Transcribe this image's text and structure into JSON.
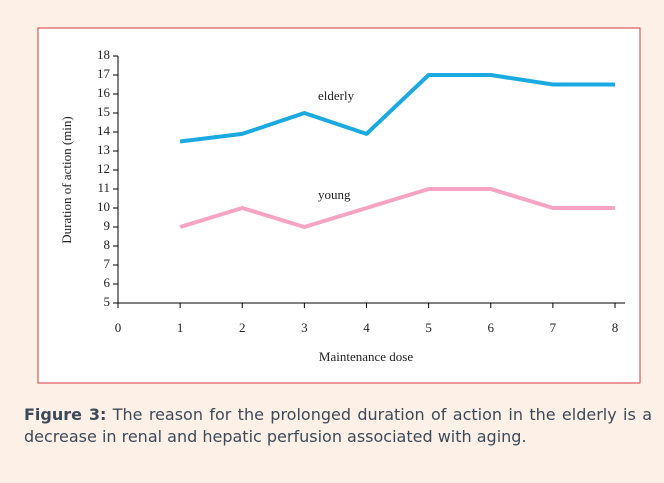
{
  "chart_data": {
    "type": "line",
    "x": [
      1,
      2,
      3,
      4,
      5,
      6,
      7,
      8
    ],
    "series": [
      {
        "name": "elderly",
        "color": "#1ba9e1",
        "values": [
          13.5,
          13.9,
          15,
          13.9,
          17,
          17,
          16.5,
          16.5
        ]
      },
      {
        "name": "young",
        "color": "#f7a3c4",
        "values": [
          9,
          10,
          9,
          10,
          11,
          11,
          10,
          10
        ]
      }
    ],
    "xlabel": "Maintenance dose",
    "ylabel": "Duration of action (min)",
    "xlim": [
      0,
      8
    ],
    "xticks": [
      0,
      1,
      2,
      3,
      4,
      5,
      6,
      7,
      8
    ],
    "ylim": [
      5,
      18
    ],
    "yticks": [
      5,
      6,
      7,
      8,
      9,
      10,
      11,
      12,
      13,
      14,
      15,
      16,
      17,
      18
    ]
  },
  "caption": {
    "label": "Figure 3:",
    "text": "The reason for the prolonged duration of action in the elderly is a decrease in renal and hepatic perfusion associated with aging."
  }
}
